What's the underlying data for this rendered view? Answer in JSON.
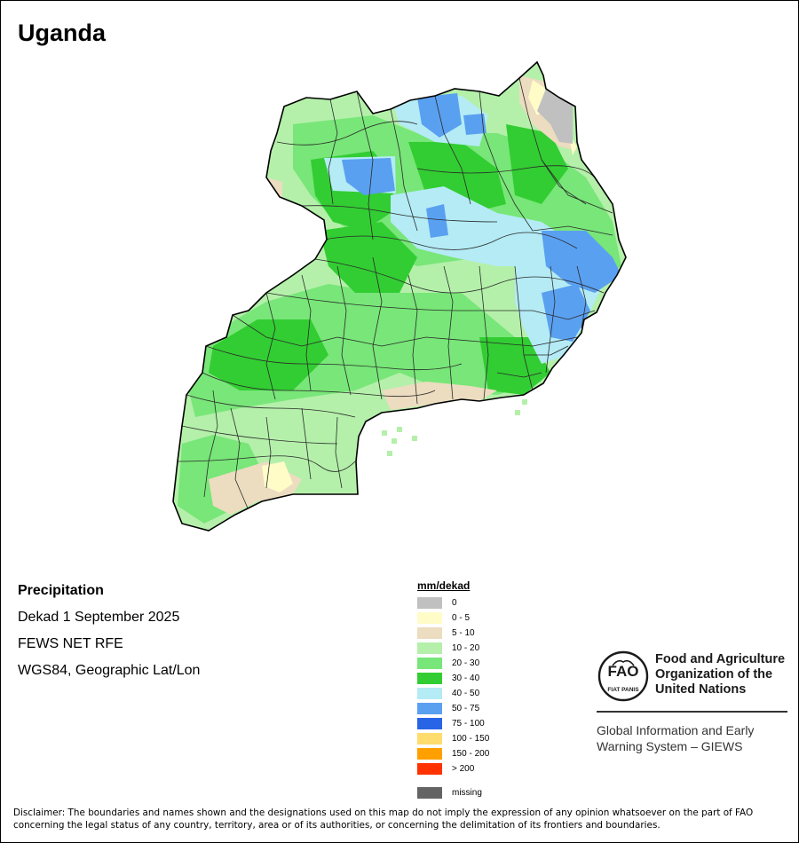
{
  "map": {
    "country": "Uganda",
    "product": "Precipitation",
    "period": "Dekad 1 September 2025",
    "source": "FEWS NET RFE",
    "projection": "WGS84, Geographic Lat/Lon"
  },
  "legend": {
    "unit": "mm/dekad",
    "classes": [
      {
        "label": "0",
        "color": "#c0c0c0"
      },
      {
        "label": "0 - 5",
        "color": "#fffcc8"
      },
      {
        "label": "5 - 10",
        "color": "#ecdcc0"
      },
      {
        "label": "10 - 20",
        "color": "#b4f0aa"
      },
      {
        "label": "20 - 30",
        "color": "#78e678"
      },
      {
        "label": "30 - 40",
        "color": "#32cd32"
      },
      {
        "label": "40 - 50",
        "color": "#b4ebf5"
      },
      {
        "label": "50 - 75",
        "color": "#5aa0f0"
      },
      {
        "label": "75 - 100",
        "color": "#2864e6"
      },
      {
        "label": "100 - 150",
        "color": "#ffdc6e"
      },
      {
        "label": "150 - 200",
        "color": "#ffa000"
      },
      {
        "label": "> 200",
        "color": "#ff3200"
      }
    ],
    "missing": {
      "label": "missing",
      "color": "#646464"
    }
  },
  "fao": {
    "logo_text": "FAO",
    "logo_motto": "FIAT PANIS",
    "org_line1": "Food and Agriculture",
    "org_line2": "Organization of the",
    "org_line3": "United Nations",
    "giews_line1": "Global Information and Early",
    "giews_line2": "Warning System – GIEWS"
  },
  "disclaimer": {
    "line1": "Disclaimer: The boundaries and names shown and the designations used on this map do not imply the expression of any opinion whatsoever on the part of FAO",
    "line2": "concerning the legal status of any country, territory, area or of its authorities, or concerning the delimitation of its frontiers and boundaries."
  }
}
